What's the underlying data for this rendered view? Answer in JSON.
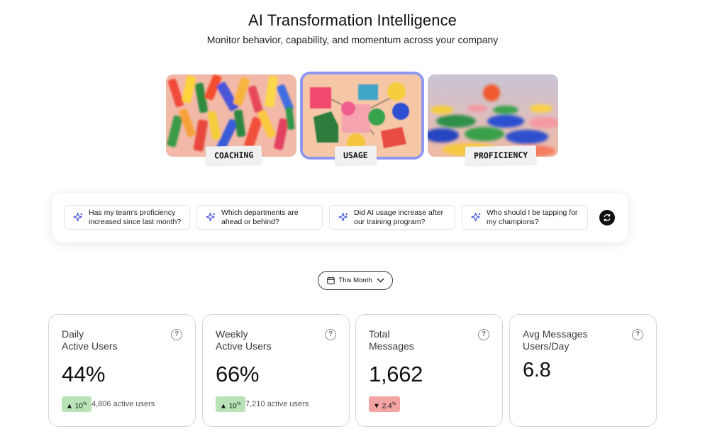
{
  "header": {
    "title": "AI Transformation Intelligence",
    "subtitle": "Monitor behavior, capability, and momentum across your company"
  },
  "cards": [
    {
      "label": "COACHING",
      "selected": false
    },
    {
      "label": "USAGE",
      "selected": true
    },
    {
      "label": "PROFICIENCY",
      "selected": false
    }
  ],
  "prompts": [
    {
      "line1": "Has my team's proficiency",
      "line2": "increased since last month?"
    },
    {
      "line1": "Which departments are",
      "line2": "ahead or behind?"
    },
    {
      "line1": "Did AI usage increase after",
      "line2": "our training program?"
    },
    {
      "line1": "Who should I be tapping for",
      "line2": "my champions?"
    }
  ],
  "icons": {
    "prompt": "sparkle-icon",
    "refresh": "refresh-icon",
    "calendar": "calendar-icon",
    "chevron": "chevron-down-icon",
    "help": "help-icon"
  },
  "date_filter": {
    "label": "This Month"
  },
  "metrics": [
    {
      "title_line1": "Daily",
      "title_line2": "Active Users",
      "value": "44%",
      "trend": "up",
      "change": "10",
      "change_unit": "%",
      "users": "4,806 active users"
    },
    {
      "title_line1": "Weekly",
      "title_line2": "Active Users",
      "value": "66%",
      "trend": "up",
      "change": "10",
      "change_unit": "%",
      "users": "7,210 active users"
    },
    {
      "title_line1": "Total",
      "title_line2": "Messages",
      "value": "1,662",
      "trend": "down",
      "change": "2.4",
      "change_unit": "%",
      "users": ""
    },
    {
      "title_line1": "Avg Messages",
      "title_line2": "Users/Day",
      "value": "6.8",
      "trend": "",
      "change": "",
      "change_unit": "",
      "users": ""
    }
  ],
  "colors": {
    "accent_selected": "#8f98f0",
    "up": "#b9e3b6",
    "down": "#f3a3a1",
    "sparkle": "#3c4fd6"
  }
}
